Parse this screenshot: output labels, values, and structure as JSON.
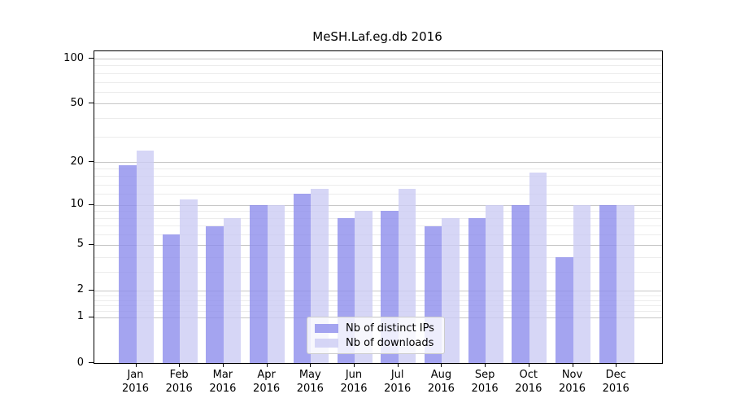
{
  "title": "MeSH.Laf.eg.db 2016",
  "colors": {
    "distinct_ips": "rgba(141,141,236,0.8)",
    "downloads": "rgba(204,204,244,0.8)",
    "grid_major": "#c8c8c8",
    "grid_minor": "#ececec",
    "axis": "#000000",
    "legend_border": "#cccccc",
    "text": "#000000"
  },
  "legend": {
    "items": [
      {
        "label": "Nb of distinct IPs",
        "series": "distinct_ips"
      },
      {
        "label": "Nb of downloads",
        "series": "downloads"
      }
    ]
  },
  "chart_data": {
    "type": "bar",
    "title": "MeSH.Laf.eg.db 2016",
    "categories": [
      "Jan",
      "Feb",
      "Mar",
      "Apr",
      "May",
      "Jun",
      "Jul",
      "Aug",
      "Sep",
      "Oct",
      "Nov",
      "Dec"
    ],
    "year": "2016",
    "series": [
      {
        "name": "Nb of distinct IPs",
        "key": "distinct_ips",
        "values": [
          19,
          6,
          7,
          10,
          12,
          8,
          9,
          7,
          8,
          10,
          4,
          10
        ]
      },
      {
        "name": "Nb of downloads",
        "key": "downloads",
        "values": [
          24,
          11,
          8,
          10,
          13,
          9,
          13,
          8,
          10,
          17,
          10,
          10
        ]
      }
    ],
    "xlabel": "",
    "ylabel": "",
    "yscale": "log1p",
    "ylim": [
      0,
      113
    ],
    "yticks": [
      0,
      1,
      2,
      5,
      10,
      20,
      50,
      100
    ],
    "yticks_minor": [
      1.2,
      1.4,
      1.6,
      1.8,
      3,
      4,
      6,
      7,
      8,
      9,
      12,
      14,
      16,
      18,
      30,
      40,
      60,
      70,
      80,
      90
    ],
    "grid": true,
    "legend_position": "bottom-center"
  }
}
